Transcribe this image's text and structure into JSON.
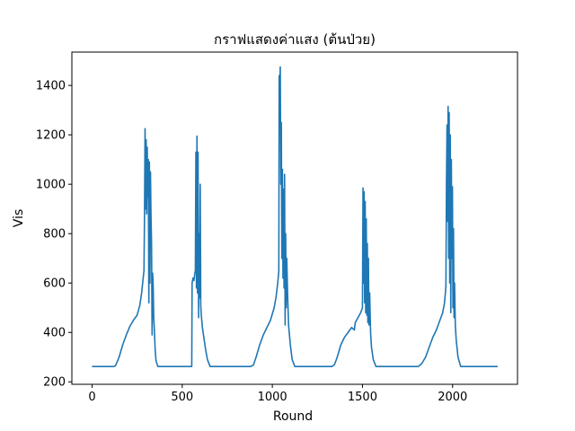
{
  "chart_data": {
    "type": "line",
    "title": "กราฟแสดงค่าแสง (ต้นป่วย)",
    "xlabel": "Round",
    "ylabel": "Vis",
    "xlim": [
      -112,
      2360
    ],
    "ylim": [
      190,
      1535
    ],
    "x_ticks": [
      0,
      500,
      1000,
      1500,
      2000
    ],
    "y_ticks": [
      200,
      400,
      600,
      800,
      1000,
      1200,
      1400
    ],
    "grid": false,
    "legend": "none",
    "series": [
      {
        "color": "#1f77b4",
        "points": [
          [
            0,
            262
          ],
          [
            60,
            262
          ],
          [
            120,
            262
          ],
          [
            130,
            265
          ],
          [
            150,
            300
          ],
          [
            170,
            350
          ],
          [
            190,
            390
          ],
          [
            210,
            425
          ],
          [
            230,
            450
          ],
          [
            250,
            470
          ],
          [
            265,
            510
          ],
          [
            275,
            560
          ],
          [
            282,
            610
          ],
          [
            288,
            650
          ],
          [
            291,
            880
          ],
          [
            294,
            1225
          ],
          [
            297,
            900
          ],
          [
            300,
            1180
          ],
          [
            303,
            880
          ],
          [
            306,
            1150
          ],
          [
            309,
            950
          ],
          [
            312,
            1100
          ],
          [
            315,
            520
          ],
          [
            318,
            1090
          ],
          [
            321,
            600
          ],
          [
            324,
            1050
          ],
          [
            327,
            870
          ],
          [
            330,
            760
          ],
          [
            333,
            390
          ],
          [
            336,
            640
          ],
          [
            339,
            590
          ],
          [
            342,
            460
          ],
          [
            345,
            420
          ],
          [
            350,
            330
          ],
          [
            355,
            285
          ],
          [
            365,
            262
          ],
          [
            430,
            262
          ],
          [
            500,
            262
          ],
          [
            553,
            262
          ],
          [
            555,
            600
          ],
          [
            560,
            620
          ],
          [
            565,
            610
          ],
          [
            570,
            640
          ],
          [
            573,
            650
          ],
          [
            576,
            1130
          ],
          [
            579,
            580
          ],
          [
            582,
            1195
          ],
          [
            585,
            560
          ],
          [
            588,
            1130
          ],
          [
            591,
            460
          ],
          [
            594,
            800
          ],
          [
            597,
            540
          ],
          [
            600,
            1000
          ],
          [
            603,
            510
          ],
          [
            606,
            470
          ],
          [
            612,
            420
          ],
          [
            620,
            380
          ],
          [
            630,
            330
          ],
          [
            640,
            290
          ],
          [
            655,
            262
          ],
          [
            720,
            262
          ],
          [
            800,
            262
          ],
          [
            880,
            262
          ],
          [
            895,
            268
          ],
          [
            910,
            300
          ],
          [
            930,
            350
          ],
          [
            950,
            390
          ],
          [
            970,
            420
          ],
          [
            990,
            450
          ],
          [
            1010,
            500
          ],
          [
            1020,
            540
          ],
          [
            1030,
            600
          ],
          [
            1036,
            650
          ],
          [
            1038,
            1440
          ],
          [
            1041,
            1380
          ],
          [
            1044,
            1475
          ],
          [
            1047,
            1000
          ],
          [
            1050,
            1250
          ],
          [
            1053,
            700
          ],
          [
            1056,
            1060
          ],
          [
            1059,
            620
          ],
          [
            1062,
            980
          ],
          [
            1065,
            580
          ],
          [
            1068,
            1040
          ],
          [
            1071,
            430
          ],
          [
            1074,
            800
          ],
          [
            1077,
            500
          ],
          [
            1080,
            700
          ],
          [
            1085,
            550
          ],
          [
            1090,
            430
          ],
          [
            1100,
            350
          ],
          [
            1110,
            290
          ],
          [
            1125,
            262
          ],
          [
            1200,
            262
          ],
          [
            1300,
            262
          ],
          [
            1330,
            262
          ],
          [
            1345,
            270
          ],
          [
            1360,
            300
          ],
          [
            1380,
            350
          ],
          [
            1400,
            380
          ],
          [
            1420,
            400
          ],
          [
            1440,
            420
          ],
          [
            1455,
            410
          ],
          [
            1460,
            440
          ],
          [
            1475,
            460
          ],
          [
            1490,
            480
          ],
          [
            1500,
            500
          ],
          [
            1503,
            985
          ],
          [
            1506,
            600
          ],
          [
            1509,
            970
          ],
          [
            1512,
            520
          ],
          [
            1515,
            930
          ],
          [
            1518,
            480
          ],
          [
            1521,
            860
          ],
          [
            1524,
            470
          ],
          [
            1527,
            760
          ],
          [
            1530,
            440
          ],
          [
            1533,
            700
          ],
          [
            1536,
            430
          ],
          [
            1540,
            560
          ],
          [
            1545,
            400
          ],
          [
            1550,
            340
          ],
          [
            1560,
            290
          ],
          [
            1575,
            262
          ],
          [
            1650,
            262
          ],
          [
            1750,
            262
          ],
          [
            1810,
            262
          ],
          [
            1830,
            275
          ],
          [
            1850,
            300
          ],
          [
            1870,
            340
          ],
          [
            1890,
            380
          ],
          [
            1910,
            410
          ],
          [
            1930,
            450
          ],
          [
            1945,
            480
          ],
          [
            1955,
            520
          ],
          [
            1960,
            560
          ],
          [
            1963,
            590
          ],
          [
            1966,
            1000
          ],
          [
            1969,
            1240
          ],
          [
            1972,
            850
          ],
          [
            1975,
            1315
          ],
          [
            1978,
            700
          ],
          [
            1981,
            1290
          ],
          [
            1984,
            600
          ],
          [
            1987,
            1200
          ],
          [
            1990,
            480
          ],
          [
            1993,
            1100
          ],
          [
            1996,
            700
          ],
          [
            1999,
            990
          ],
          [
            2002,
            500
          ],
          [
            2005,
            820
          ],
          [
            2008,
            460
          ],
          [
            2011,
            600
          ],
          [
            2015,
            430
          ],
          [
            2020,
            370
          ],
          [
            2030,
            300
          ],
          [
            2045,
            262
          ],
          [
            2120,
            262
          ],
          [
            2200,
            262
          ],
          [
            2250,
            262
          ]
        ]
      }
    ]
  }
}
